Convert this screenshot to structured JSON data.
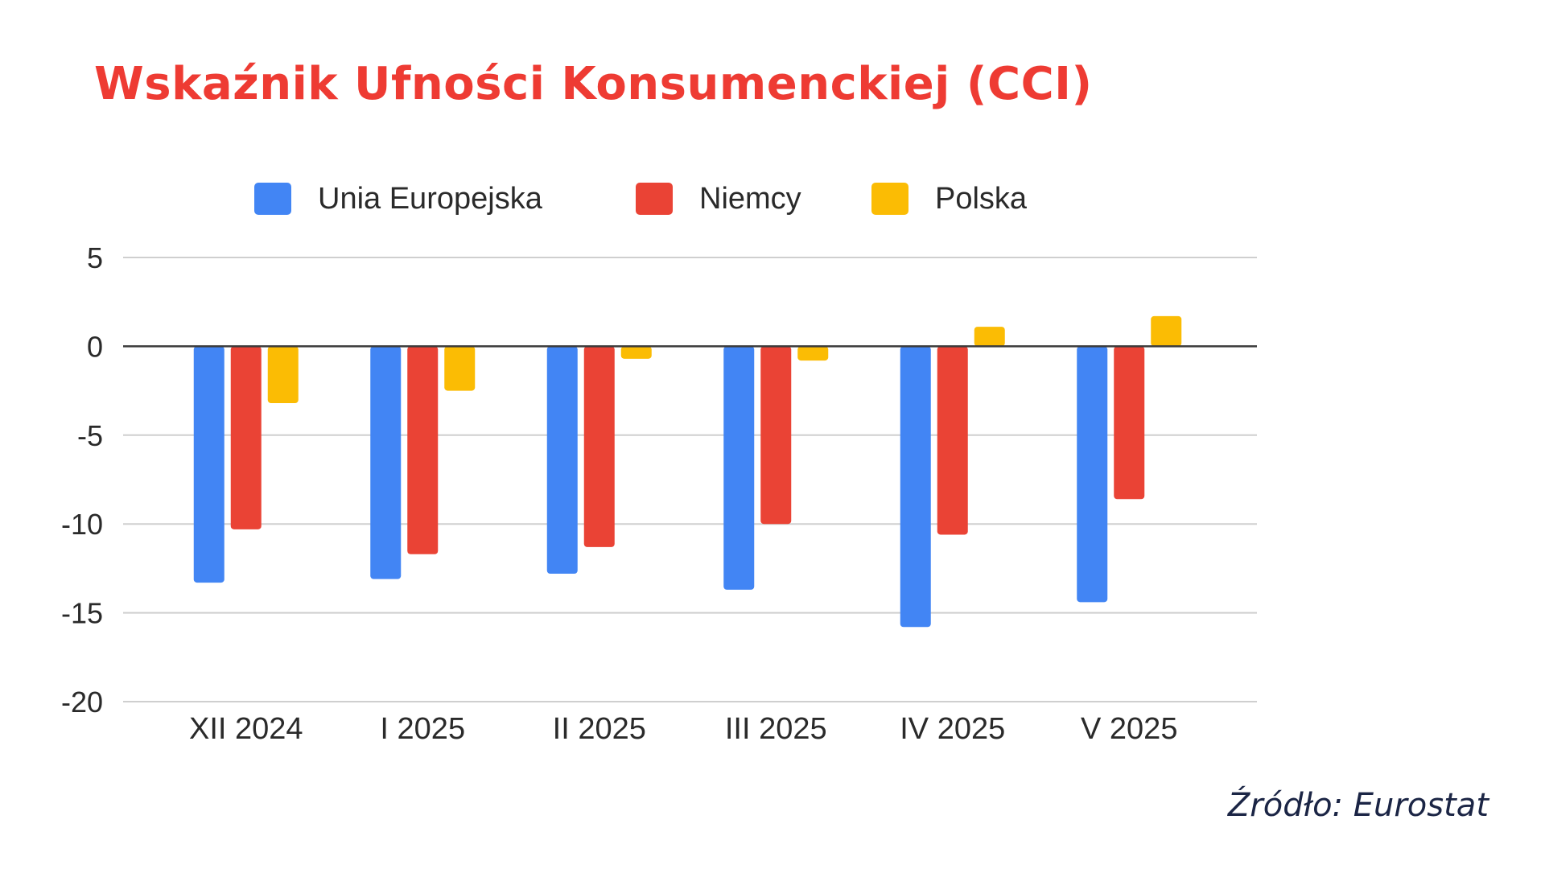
{
  "chart_data": {
    "type": "bar",
    "title": "Wskaźnik Ufności Konsumenckiej (CCI)",
    "categories": [
      "XII 2024",
      "I 2025",
      "II 2025",
      "III 2025",
      "IV 2025",
      "V 2025"
    ],
    "series": [
      {
        "name": "Unia Europejska",
        "color": "#4285F4",
        "values": [
          -13.3,
          -13.1,
          -12.8,
          -13.7,
          -15.8,
          -14.4
        ]
      },
      {
        "name": "Niemcy",
        "color": "#EA4335",
        "values": [
          -10.3,
          -11.7,
          -11.3,
          -10.0,
          -10.6,
          -8.6
        ]
      },
      {
        "name": "Polska",
        "color": "#FBBC04",
        "values": [
          -3.2,
          -2.5,
          -0.7,
          -0.8,
          1.1,
          1.7
        ]
      }
    ],
    "y_ticks": [
      5,
      0,
      -5,
      -10,
      -15,
      -20
    ],
    "ylim": [
      -20,
      5
    ],
    "grid": true,
    "legend_position": "top",
    "xlabel": "",
    "ylabel": ""
  },
  "title_color": "#EE3B33",
  "source_note": "Źródło: Eurostat"
}
